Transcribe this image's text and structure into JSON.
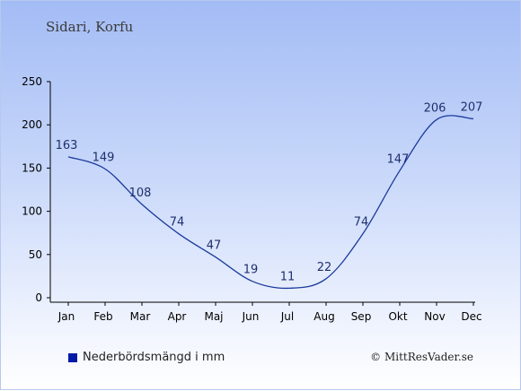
{
  "title": "Sidari, Korfu",
  "legend": {
    "label": "Nederbördsmängd i mm",
    "color": "#0019a8"
  },
  "credit": "© MittResVader.se",
  "chart_data": {
    "type": "line",
    "categories": [
      "Jan",
      "Feb",
      "Mar",
      "Apr",
      "Maj",
      "Jun",
      "Jul",
      "Aug",
      "Sep",
      "Okt",
      "Nov",
      "Dec"
    ],
    "series": [
      {
        "name": "Nederbördsmängd i mm",
        "values": [
          163,
          149,
          108,
          74,
          47,
          19,
          11,
          22,
          74,
          147,
          206,
          207
        ],
        "color": "#1a3a9c"
      }
    ],
    "ylim": [
      0,
      250
    ],
    "yticks": [
      0,
      50,
      100,
      150,
      200,
      250
    ],
    "data_labels": true,
    "grid": false
  }
}
